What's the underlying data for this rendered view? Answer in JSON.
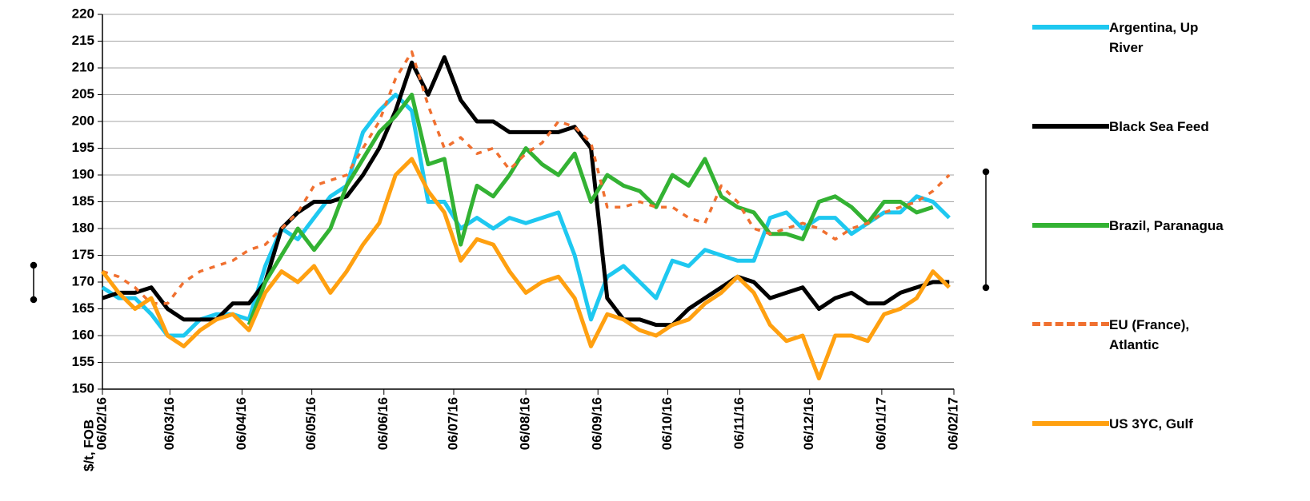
{
  "chart_data": {
    "type": "line",
    "y_label": "$/t, FOB",
    "x": [
      "2016-02-06",
      "2016-02-13",
      "2016-02-20",
      "2016-02-27",
      "2016-03-05",
      "2016-03-12",
      "2016-03-19",
      "2016-03-26",
      "2016-04-02",
      "2016-04-09",
      "2016-04-16",
      "2016-04-23",
      "2016-04-30",
      "2016-05-07",
      "2016-05-14",
      "2016-05-21",
      "2016-05-28",
      "2016-06-04",
      "2016-06-11",
      "2016-06-18",
      "2016-06-25",
      "2016-07-02",
      "2016-07-09",
      "2016-07-16",
      "2016-07-23",
      "2016-07-30",
      "2016-08-06",
      "2016-08-13",
      "2016-08-20",
      "2016-08-27",
      "2016-09-03",
      "2016-09-10",
      "2016-09-17",
      "2016-09-24",
      "2016-10-01",
      "2016-10-08",
      "2016-10-15",
      "2016-10-22",
      "2016-10-29",
      "2016-11-05",
      "2016-11-12",
      "2016-11-19",
      "2016-11-26",
      "2016-12-03",
      "2016-12-10",
      "2016-12-17",
      "2016-12-24",
      "2016-12-31",
      "2017-01-07",
      "2017-01-14",
      "2017-01-21",
      "2017-01-28",
      "2017-02-04"
    ],
    "series": [
      {
        "name": "Argentina, Up River",
        "color": "#1ec8f0",
        "dashed": false,
        "values": [
          169,
          167,
          167,
          164,
          160,
          160,
          163,
          164,
          164,
          163,
          173,
          180,
          178,
          182,
          186,
          188,
          198,
          202,
          205,
          202,
          185,
          185,
          180,
          182,
          180,
          182,
          181,
          182,
          183,
          175,
          163,
          171,
          173,
          170,
          167,
          174,
          173,
          176,
          175,
          174,
          174,
          182,
          183,
          180,
          182,
          182,
          179,
          181,
          183,
          183,
          186,
          185,
          182
        ]
      },
      {
        "name": "Black Sea Feed",
        "color": "#000000",
        "dashed": false,
        "values": [
          167,
          168,
          168,
          169,
          165,
          163,
          163,
          163,
          166,
          166,
          170,
          180,
          183,
          185,
          185,
          186,
          190,
          195,
          202,
          211,
          205,
          212,
          204,
          200,
          200,
          198,
          198,
          198,
          198,
          199,
          195,
          167,
          163,
          163,
          162,
          162,
          165,
          167,
          169,
          171,
          170,
          167,
          168,
          169,
          165,
          167,
          168,
          166,
          166,
          168,
          169,
          170,
          170
        ]
      },
      {
        "name": "Brazil, Paranagua",
        "color": "#33b233",
        "dashed": false,
        "values": [
          null,
          null,
          null,
          null,
          null,
          null,
          null,
          null,
          null,
          162,
          170,
          175,
          180,
          176,
          180,
          188,
          193,
          198,
          201,
          205,
          192,
          193,
          177,
          188,
          186,
          190,
          195,
          192,
          190,
          194,
          185,
          190,
          188,
          187,
          184,
          190,
          188,
          193,
          186,
          184,
          183,
          179,
          179,
          178,
          185,
          186,
          184,
          181,
          185,
          185,
          183,
          184,
          null
        ]
      },
      {
        "name": "EU (France), Atlantic",
        "color": "#f07030",
        "dashed": true,
        "values": [
          172,
          171,
          169,
          166,
          166,
          170,
          172,
          173,
          174,
          176,
          177,
          180,
          183,
          188,
          189,
          190,
          195,
          200,
          208,
          213,
          203,
          195,
          197,
          194,
          195,
          191,
          194,
          196,
          200,
          199,
          196,
          184,
          184,
          185,
          184,
          184,
          182,
          181,
          188,
          185,
          180,
          179,
          180,
          181,
          180,
          178,
          180,
          181,
          183,
          184,
          185,
          187,
          190
        ]
      },
      {
        "name": "US 3YC, Gulf",
        "color": "#ffa010",
        "dashed": false,
        "values": [
          172,
          168,
          165,
          167,
          160,
          158,
          161,
          163,
          164,
          161,
          168,
          172,
          170,
          173,
          168,
          172,
          177,
          181,
          190,
          193,
          187,
          183,
          174,
          178,
          177,
          172,
          168,
          170,
          171,
          167,
          158,
          164,
          163,
          161,
          160,
          162,
          163,
          166,
          168,
          171,
          168,
          162,
          159,
          160,
          152,
          160,
          160,
          159,
          164,
          165,
          167,
          172,
          169
        ]
      }
    ],
    "xlim": [
      "2016-02-06",
      "2017-02-06"
    ],
    "xticks": [
      {
        "value": "2016-02-06",
        "label": "06/02/16"
      },
      {
        "value": "2016-03-06",
        "label": "06/03/16"
      },
      {
        "value": "2016-04-06",
        "label": "06/04/16"
      },
      {
        "value": "2016-05-06",
        "label": "06/05/16"
      },
      {
        "value": "2016-06-06",
        "label": "06/06/16"
      },
      {
        "value": "2016-07-06",
        "label": "06/07/16"
      },
      {
        "value": "2016-08-06",
        "label": "06/08/16"
      },
      {
        "value": "2016-09-06",
        "label": "06/09/16"
      },
      {
        "value": "2016-10-06",
        "label": "06/10/16"
      },
      {
        "value": "2016-11-06",
        "label": "06/11/16"
      },
      {
        "value": "2016-12-06",
        "label": "06/12/16"
      },
      {
        "value": "2017-01-06",
        "label": "06/01/17"
      },
      {
        "value": "2017-02-06",
        "label": "06/02/17"
      }
    ],
    "ylim": [
      150,
      220
    ],
    "yticks": [
      150,
      155,
      160,
      165,
      170,
      175,
      180,
      185,
      190,
      195,
      200,
      205,
      210,
      215,
      220
    ],
    "grid": true
  }
}
